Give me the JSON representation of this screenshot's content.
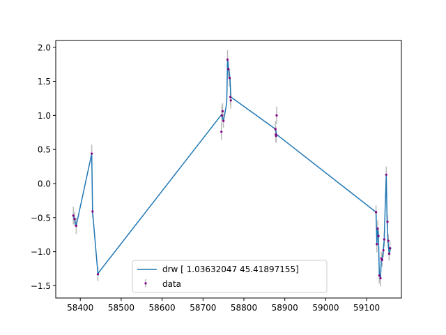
{
  "chart_data": {
    "type": "line",
    "xlim": [
      58340,
      59185
    ],
    "ylim": [
      -1.68,
      2.1
    ],
    "xticks": [
      58400,
      58500,
      58600,
      58700,
      58800,
      58900,
      59000,
      59100
    ],
    "yticks": [
      -1.5,
      -1.0,
      -0.5,
      0.0,
      0.5,
      1.0,
      1.5,
      2.0
    ],
    "xtick_labels": [
      "58400",
      "58500",
      "58600",
      "58700",
      "58800",
      "58900",
      "59000",
      "59100"
    ],
    "ytick_labels": [
      "−1.5",
      "−1.0",
      "−0.5",
      "0.0",
      "0.5",
      "1.0",
      "1.5",
      "2.0"
    ],
    "grid": false,
    "legend_position": "lower-center",
    "series": [
      {
        "name": "drw [ 1.03632047 45.41897155]",
        "kind": "line",
        "color": "#1f77b4",
        "x": [
          58383,
          58387,
          58390,
          58428,
          58430,
          58443,
          58745,
          58748,
          58750,
          58758,
          58760,
          58763,
          58766,
          58768,
          58877,
          58879,
          58880,
          59123,
          59125,
          59127,
          59129,
          59131,
          59134,
          59136,
          59138,
          59141,
          59143,
          59145,
          59148,
          59150,
          59152,
          59155,
          59158,
          59160
        ],
        "y": [
          -0.47,
          -0.55,
          -0.62,
          0.44,
          -0.41,
          -1.32,
          1.01,
          0.96,
          0.92,
          1.18,
          1.81,
          1.66,
          1.55,
          1.27,
          0.8,
          0.74,
          0.72,
          -0.42,
          -0.89,
          -0.66,
          -0.77,
          -1.35,
          -1.39,
          -1.1,
          -1.12,
          -0.98,
          -0.82,
          -0.42,
          0.13,
          -0.55,
          -0.84,
          -1.03,
          -0.96,
          -0.94
        ]
      },
      {
        "name": "data",
        "kind": "errorbar",
        "color": "#800080",
        "ecolor": "#bbbbbb",
        "points": [
          {
            "x": 58383,
            "y": -0.47,
            "err": 0.13
          },
          {
            "x": 58386,
            "y": -0.52,
            "err": 0.1
          },
          {
            "x": 58390,
            "y": -0.62,
            "err": 0.12
          },
          {
            "x": 58428,
            "y": 0.44,
            "err": 0.13
          },
          {
            "x": 58430,
            "y": -0.41,
            "err": 0.1
          },
          {
            "x": 58443,
            "y": -1.33,
            "err": 0.1
          },
          {
            "x": 58745,
            "y": 0.76,
            "err": 0.12
          },
          {
            "x": 58746,
            "y": 1.0,
            "err": 0.15
          },
          {
            "x": 58748,
            "y": 1.06,
            "err": 0.12
          },
          {
            "x": 58750,
            "y": 0.92,
            "err": 0.1
          },
          {
            "x": 58760,
            "y": 1.82,
            "err": 0.14
          },
          {
            "x": 58762,
            "y": 1.68,
            "err": 0.12
          },
          {
            "x": 58765,
            "y": 1.55,
            "err": 0.13
          },
          {
            "x": 58767,
            "y": 1.27,
            "err": 0.12
          },
          {
            "x": 58768,
            "y": 1.22,
            "err": 0.12
          },
          {
            "x": 58877,
            "y": 0.8,
            "err": 0.12
          },
          {
            "x": 58878,
            "y": 0.72,
            "err": 0.12
          },
          {
            "x": 58879,
            "y": 0.7,
            "err": 0.1
          },
          {
            "x": 58880,
            "y": 1.0,
            "err": 0.13
          },
          {
            "x": 59123,
            "y": -0.42,
            "err": 0.1
          },
          {
            "x": 59125,
            "y": -0.89,
            "err": 0.12
          },
          {
            "x": 59127,
            "y": -0.66,
            "err": 0.12
          },
          {
            "x": 59129,
            "y": -0.77,
            "err": 0.1
          },
          {
            "x": 59131,
            "y": -1.35,
            "err": 0.12
          },
          {
            "x": 59134,
            "y": -1.39,
            "err": 0.12
          },
          {
            "x": 59136,
            "y": -1.1,
            "err": 0.1
          },
          {
            "x": 59138,
            "y": -1.12,
            "err": 0.1
          },
          {
            "x": 59141,
            "y": -0.98,
            "err": 0.1
          },
          {
            "x": 59143,
            "y": -0.82,
            "err": 0.1
          },
          {
            "x": 59148,
            "y": 0.13,
            "err": 0.12
          },
          {
            "x": 59151,
            "y": -0.56,
            "err": 0.1
          },
          {
            "x": 59153,
            "y": -0.84,
            "err": 0.1
          },
          {
            "x": 59155,
            "y": -1.03,
            "err": 0.1
          },
          {
            "x": 59157,
            "y": -0.95,
            "err": 0.1
          }
        ]
      }
    ]
  }
}
